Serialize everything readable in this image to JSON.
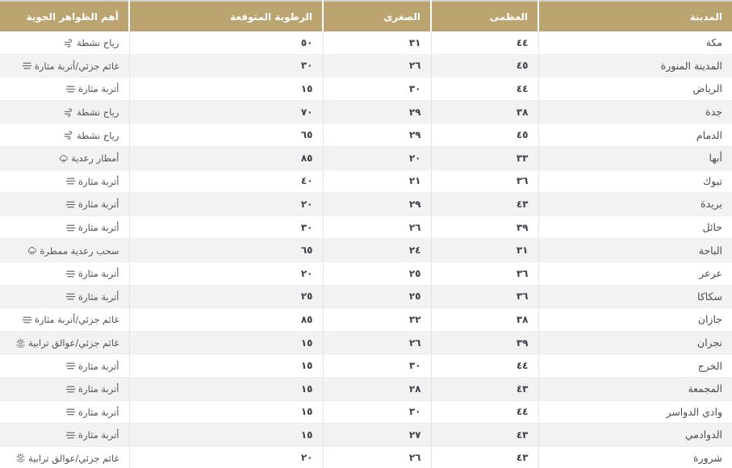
{
  "colors": {
    "header_bg": "#bca471",
    "header_text": "#ffffff",
    "row_bg": "#ffffff",
    "row_alt_bg": "#f2f2f2",
    "cell_text": "#45454d",
    "column_separator": "#e3e3e3",
    "icon": "#6e6e6e"
  },
  "table": {
    "columns": [
      {
        "key": "city",
        "label": "المدينة"
      },
      {
        "key": "max",
        "label": "العظمى"
      },
      {
        "key": "min",
        "label": "الصغرى"
      },
      {
        "key": "humidity",
        "label": "الرطوبة المتوقعة"
      },
      {
        "key": "phenomena",
        "label": "أهم الظواهر الجوية"
      }
    ],
    "rows": [
      {
        "city": "مكة",
        "max": "٤٤",
        "min": "٣١",
        "humidity": "٥٠",
        "phenomena": "رياح نشطة",
        "icon": "wind"
      },
      {
        "city": "المدينة المنورة",
        "max": "٤٥",
        "min": "٢٦",
        "humidity": "٣٠",
        "phenomena": "غائم جزئي/أتربة مثارة",
        "icon": "dust"
      },
      {
        "city": "الرياض",
        "max": "٤٤",
        "min": "٣٠",
        "humidity": "١٥",
        "phenomena": "أتربة مثارة",
        "icon": "dust"
      },
      {
        "city": "جدة",
        "max": "٣٨",
        "min": "٢٩",
        "humidity": "٧٠",
        "phenomena": "رياح نشطة",
        "icon": "wind"
      },
      {
        "city": "الدمام",
        "max": "٤٥",
        "min": "٢٩",
        "humidity": "٦٥",
        "phenomena": "رياح نشطة",
        "icon": "wind"
      },
      {
        "city": "أبها",
        "max": "٣٣",
        "min": "٢٠",
        "humidity": "٨٥",
        "phenomena": "أمطار رعدية",
        "icon": "storm-cloud"
      },
      {
        "city": "تبوك",
        "max": "٣٦",
        "min": "٢١",
        "humidity": "٤٠",
        "phenomena": "أتربة مثارة",
        "icon": "dust"
      },
      {
        "city": "بريدة",
        "max": "٤٣",
        "min": "٢٩",
        "humidity": "٢٠",
        "phenomena": "أتربة مثارة",
        "icon": "dust"
      },
      {
        "city": "حائل",
        "max": "٣٩",
        "min": "٢٦",
        "humidity": "٣٠",
        "phenomena": "أتربة مثارة",
        "icon": "dust"
      },
      {
        "city": "الباحة",
        "max": "٣١",
        "min": "٢٤",
        "humidity": "٦٥",
        "phenomena": "سحب رعدية ممطرة",
        "icon": "rain-cloud"
      },
      {
        "city": "عرعر",
        "max": "٣٦",
        "min": "٢٥",
        "humidity": "٢٠",
        "phenomena": "أتربة مثارة",
        "icon": "dust"
      },
      {
        "city": "سكاكا",
        "max": "٣٦",
        "min": "٢٥",
        "humidity": "٢٥",
        "phenomena": "أتربة مثارة",
        "icon": "dust"
      },
      {
        "city": "جازان",
        "max": "٣٨",
        "min": "٣٢",
        "humidity": "٨٥",
        "phenomena": "غائم جزئي/أتربة مثارة",
        "icon": "dust"
      },
      {
        "city": "نجران",
        "max": "٣٩",
        "min": "٢٦",
        "humidity": "١٥",
        "phenomena": "غائم جزئي/عوالق ترابية",
        "icon": "sun-dust"
      },
      {
        "city": "الخرج",
        "max": "٤٤",
        "min": "٣٠",
        "humidity": "١٥",
        "phenomena": "أتربة مثارة",
        "icon": "dust"
      },
      {
        "city": "المجمعة",
        "max": "٤٣",
        "min": "٢٨",
        "humidity": "١٥",
        "phenomena": "أتربة مثارة",
        "icon": "dust"
      },
      {
        "city": "وادي الدواسر",
        "max": "٤٤",
        "min": "٣٠",
        "humidity": "١٥",
        "phenomena": "أتربة مثارة",
        "icon": "dust"
      },
      {
        "city": "الدوادمي",
        "max": "٤٣",
        "min": "٢٧",
        "humidity": "١٥",
        "phenomena": "أتربة مثارة",
        "icon": "dust"
      },
      {
        "city": "شرورة",
        "max": "٤٣",
        "min": "٢٦",
        "humidity": "٢٠",
        "phenomena": "غائم جزئي/عوالق ترابية",
        "icon": "sun-dust"
      }
    ]
  }
}
